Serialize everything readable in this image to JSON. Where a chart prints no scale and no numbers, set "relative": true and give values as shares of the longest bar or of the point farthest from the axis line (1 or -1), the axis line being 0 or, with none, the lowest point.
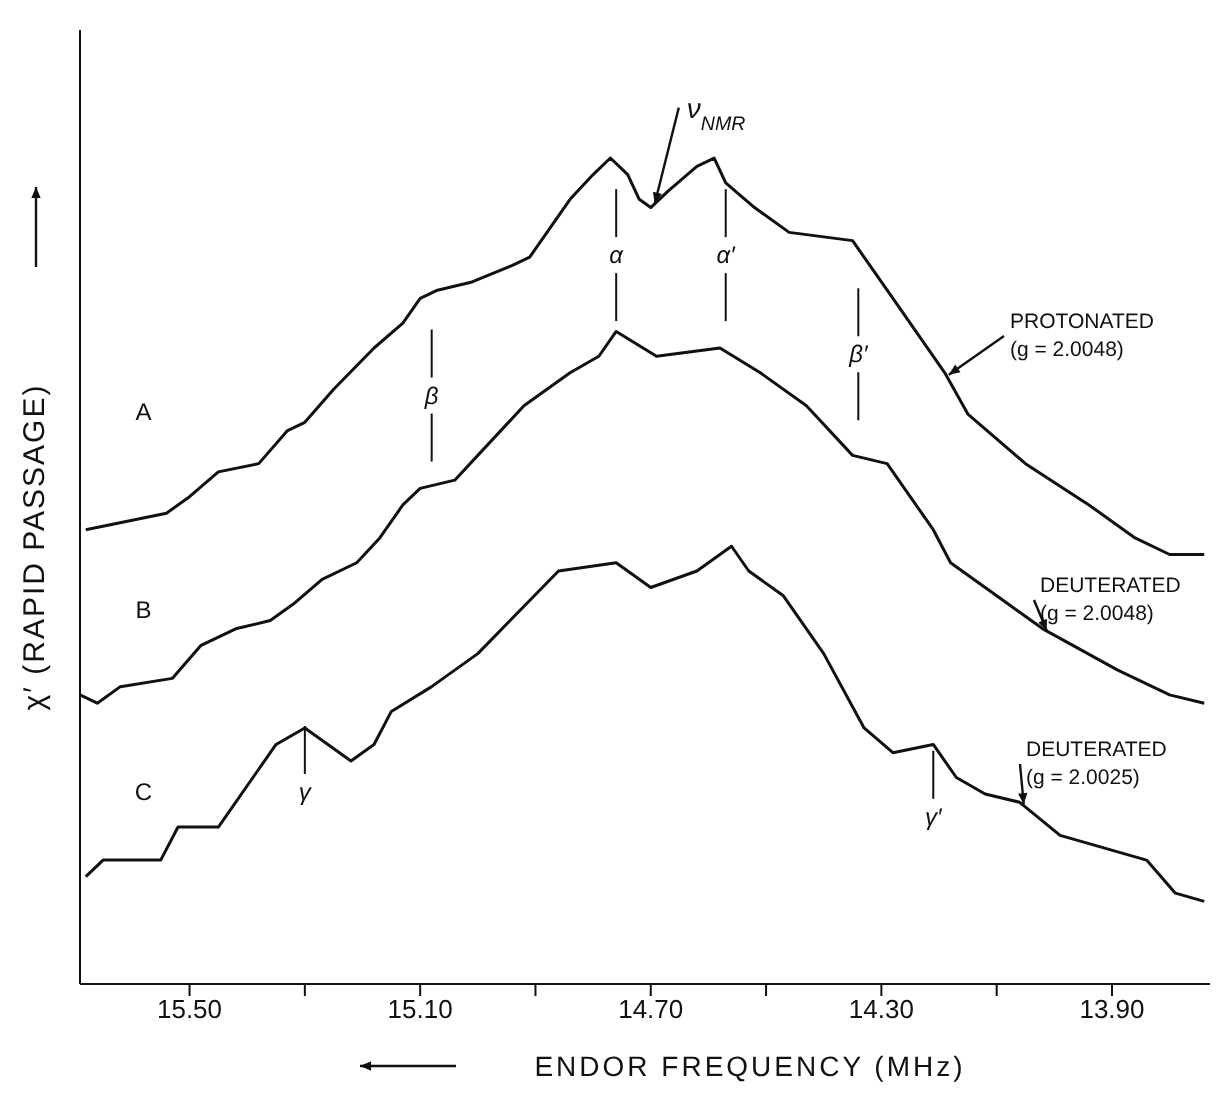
{
  "chart_data": {
    "type": "line",
    "relative": true,
    "xlabel": "ENDOR FREQUENCY (MHz)",
    "ylabel": "χ′ (RAPID PASSAGE)",
    "xlim": [
      15.69,
      13.73
    ],
    "xticks": [
      {
        "value": 15.5,
        "label": "15.50"
      },
      {
        "value": 15.3,
        "label": null
      },
      {
        "value": 15.1,
        "label": "15.10"
      },
      {
        "value": 14.9,
        "label": null
      },
      {
        "value": 14.7,
        "label": "14.70"
      },
      {
        "value": 14.5,
        "label": null
      },
      {
        "value": 14.3,
        "label": "14.30"
      },
      {
        "value": 14.1,
        "label": null
      },
      {
        "value": 13.9,
        "label": "13.90"
      }
    ],
    "marker": "none",
    "line_style": "solid",
    "series": [
      {
        "name": "PROTONATED (g = 2.0048)",
        "color": "#111111",
        "x": [
          15.68,
          15.54,
          15.5,
          15.45,
          15.38,
          15.33,
          15.3,
          15.25,
          15.18,
          15.13,
          15.1,
          15.07,
          15.01,
          14.94,
          14.91,
          14.88,
          14.84,
          14.8,
          14.77,
          14.74,
          14.72,
          14.7,
          14.67,
          14.62,
          14.59,
          14.57,
          14.52,
          14.46,
          14.35,
          14.31,
          14.27,
          14.19,
          14.15,
          14.05,
          13.94,
          13.86,
          13.8,
          13.74
        ],
        "values": [
          0.55,
          0.57,
          0.59,
          0.62,
          0.63,
          0.67,
          0.68,
          0.72,
          0.77,
          0.8,
          0.83,
          0.84,
          0.85,
          0.87,
          0.88,
          0.91,
          0.95,
          0.98,
          1,
          0.98,
          0.95,
          0.94,
          0.96,
          0.99,
          1,
          0.97,
          0.94,
          0.91,
          0.9,
          0.86,
          0.82,
          0.74,
          0.69,
          0.63,
          0.58,
          0.54,
          0.52,
          0.52
        ]
      },
      {
        "name": "DEUTERATED (g = 2.0048)",
        "color": "#111111",
        "x": [
          15.69,
          15.66,
          15.62,
          15.53,
          15.48,
          15.42,
          15.36,
          15.32,
          15.27,
          15.21,
          15.17,
          15.13,
          15.1,
          15.04,
          15.0,
          14.92,
          14.84,
          14.79,
          14.76,
          14.69,
          14.58,
          14.51,
          14.43,
          14.35,
          14.29,
          14.21,
          14.18,
          14.08,
          14.02,
          13.89,
          13.8,
          13.74
        ],
        "values": [
          0.35,
          0.34,
          0.36,
          0.37,
          0.41,
          0.43,
          0.44,
          0.46,
          0.49,
          0.51,
          0.54,
          0.58,
          0.6,
          0.61,
          0.64,
          0.7,
          0.74,
          0.76,
          0.79,
          0.76,
          0.77,
          0.74,
          0.7,
          0.64,
          0.63,
          0.55,
          0.51,
          0.46,
          0.43,
          0.38,
          0.35,
          0.34
        ]
      },
      {
        "name": "DEUTERATED (g = 2.0025)",
        "color": "#111111",
        "x": [
          15.68,
          15.65,
          15.55,
          15.52,
          15.45,
          15.39,
          15.35,
          15.3,
          15.26,
          15.22,
          15.18,
          15.15,
          15.08,
          15.0,
          14.93,
          14.86,
          14.76,
          14.7,
          14.62,
          14.56,
          14.53,
          14.47,
          14.4,
          14.33,
          14.28,
          14.21,
          14.17,
          14.12,
          14.06,
          13.99,
          13.84,
          13.79,
          13.74
        ],
        "values": [
          0.13,
          0.15,
          0.15,
          0.19,
          0.19,
          0.25,
          0.29,
          0.31,
          0.29,
          0.27,
          0.29,
          0.33,
          0.36,
          0.4,
          0.45,
          0.5,
          0.51,
          0.48,
          0.5,
          0.53,
          0.5,
          0.47,
          0.4,
          0.31,
          0.28,
          0.29,
          0.25,
          0.23,
          0.22,
          0.18,
          0.15,
          0.11,
          0.1
        ]
      }
    ],
    "annotations": [
      "A",
      "B",
      "C",
      "β",
      "α",
      "α′",
      "β′",
      "γ",
      "γ′",
      {
        "text": "ν$_{NMR}$",
        "x": 14.7,
        "y": 0.94
      }
    ]
  }
}
